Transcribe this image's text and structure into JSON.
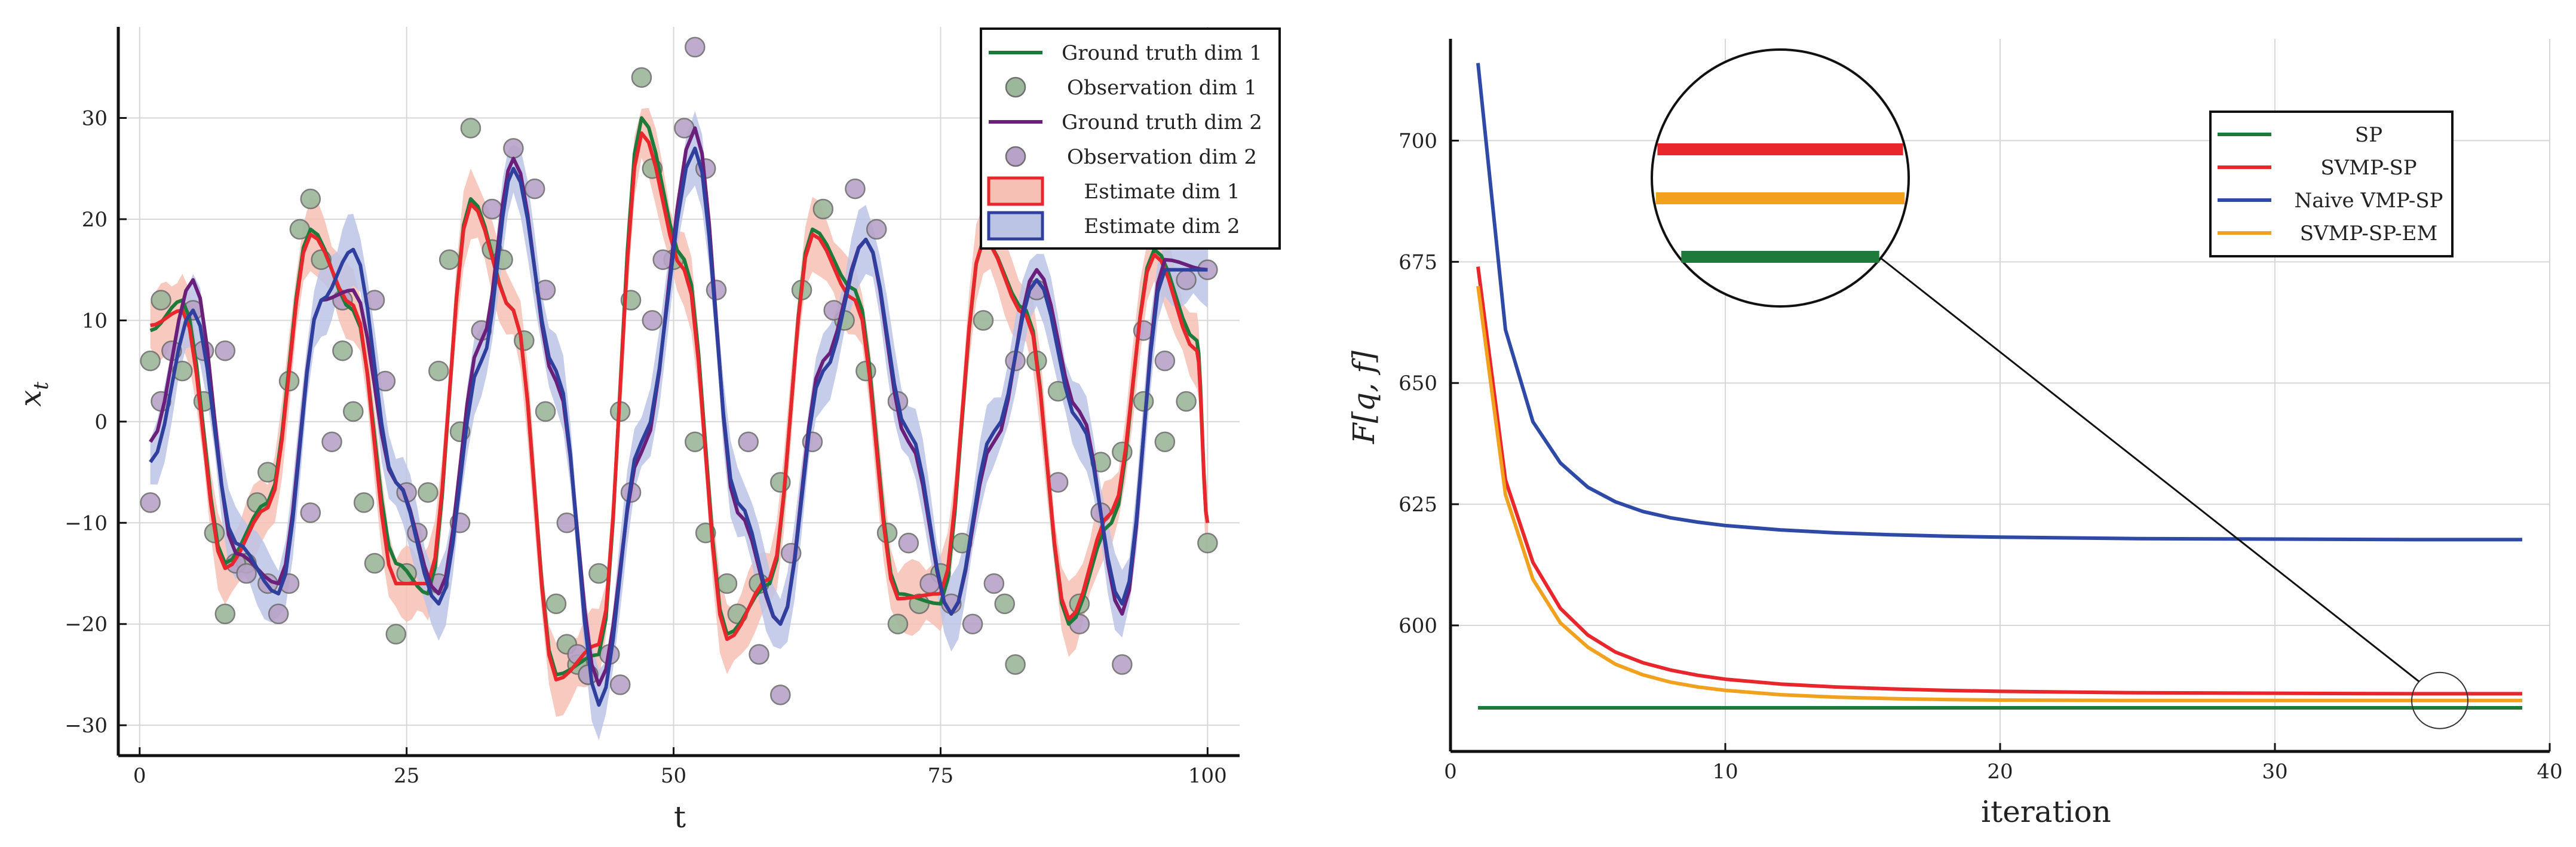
{
  "chart_data": [
    {
      "type": "line",
      "title": "",
      "xlabel": "t",
      "ylabel": "x_t",
      "xlim": [
        -2,
        103
      ],
      "ylim": [
        -33,
        39
      ],
      "xticks": [
        0,
        25,
        50,
        75,
        100
      ],
      "yticks": [
        -30,
        -20,
        -10,
        0,
        10,
        20,
        30
      ],
      "grid": true,
      "legend_position": "top-right",
      "legend": [
        {
          "label": "Ground truth dim 1",
          "kind": "line",
          "color": "#1e7a3a"
        },
        {
          "label": "Observation dim 1",
          "kind": "marker",
          "color": "#9cb89a"
        },
        {
          "label": "Ground truth dim 2",
          "kind": "line",
          "color": "#6a1f7a"
        },
        {
          "label": "Observation dim 2",
          "kind": "marker",
          "color": "#b8a2c8"
        },
        {
          "label": "Estimate dim 1",
          "kind": "band",
          "color": "#e8262b",
          "fill": "#f6c0b4"
        },
        {
          "label": "Estimate dim 2",
          "kind": "band",
          "color": "#2f3f9e",
          "fill": "#bcc4e6"
        }
      ],
      "series": [
        {
          "name": "Ground truth dim 1",
          "color": "#1e7a3a",
          "x": [
            1,
            4,
            8,
            12,
            16,
            20,
            24,
            27,
            31,
            35,
            39,
            43,
            47,
            51,
            55,
            59,
            63,
            67,
            71,
            75,
            79,
            83,
            87,
            91,
            95,
            99,
            100
          ],
          "y": [
            9,
            12,
            -14,
            -8,
            19,
            11,
            -14,
            -17,
            22,
            11,
            -25,
            -23,
            30,
            16,
            -21,
            -16,
            19,
            13,
            -17,
            -18,
            18,
            11,
            -20,
            -10,
            17,
            8,
            -10
          ]
        },
        {
          "name": "Estimate dim 1",
          "color": "#e8262b",
          "x": [
            1,
            4,
            8,
            12,
            16,
            20,
            24,
            27,
            31,
            35,
            39,
            43,
            47,
            51,
            55,
            59,
            63,
            67,
            71,
            75,
            79,
            83,
            87,
            91,
            95,
            99,
            100
          ],
          "y": [
            9.5,
            11,
            -14.5,
            -8.5,
            18.5,
            11.5,
            -16,
            -16,
            21.5,
            11,
            -25.5,
            -22,
            28.5,
            15,
            -21.5,
            -15.5,
            18.5,
            12,
            -17.5,
            -17,
            18,
            10.5,
            -19.5,
            -9,
            16.5,
            7,
            -10
          ]
        },
        {
          "name": "Ground truth dim 2",
          "color": "#6a1f7a",
          "x": [
            1,
            5,
            9,
            13,
            17,
            20,
            24,
            28,
            32,
            35,
            39,
            43,
            47,
            52,
            56,
            60,
            64,
            68,
            72,
            76,
            80,
            84,
            88,
            92,
            96,
            100
          ],
          "y": [
            -2,
            14,
            -13,
            -16,
            12,
            13,
            -6,
            -17,
            8,
            26,
            4,
            -26,
            -3,
            29,
            -9,
            -20,
            6,
            18,
            -2,
            -19,
            -2,
            15,
            1,
            -19,
            16,
            15
          ]
        },
        {
          "name": "Estimate dim 2",
          "color": "#2f3f9e",
          "x": [
            1,
            5,
            9,
            13,
            17,
            20,
            24,
            28,
            32,
            35,
            39,
            43,
            47,
            52,
            56,
            60,
            64,
            68,
            72,
            76,
            80,
            84,
            88,
            92,
            96,
            100
          ],
          "y": [
            -4,
            11,
            -12,
            -17,
            12,
            17,
            -6,
            -18,
            6,
            25,
            5,
            -28,
            -2,
            27,
            -8,
            -20,
            5,
            18,
            -1,
            -19,
            -1,
            14,
            0,
            -18,
            15,
            15
          ]
        }
      ],
      "observations": [
        {
          "name": "Observation dim 1",
          "color": "#9cb89a",
          "x": [
            1,
            2,
            4,
            6,
            7,
            8,
            10,
            11,
            12,
            14,
            15,
            16,
            17,
            19,
            20,
            21,
            22,
            24,
            25,
            27,
            28,
            29,
            30,
            31,
            33,
            34,
            36,
            38,
            39,
            40,
            41,
            42,
            43,
            45,
            46,
            47,
            48,
            50,
            52,
            53,
            55,
            56,
            58,
            60,
            62,
            64,
            66,
            68,
            70,
            71,
            73,
            75,
            77,
            79,
            81,
            82,
            84,
            86,
            88,
            90,
            92,
            94,
            96,
            98,
            100
          ],
          "y": [
            6,
            12,
            5,
            2,
            -11,
            -19,
            -14,
            -8,
            -5,
            4,
            19,
            22,
            16,
            7,
            1,
            -8,
            -14,
            -21,
            -15,
            -7,
            5,
            16,
            -1,
            29,
            17,
            16,
            8,
            1,
            -18,
            -22,
            -24,
            -25,
            -15,
            1,
            12,
            34,
            25,
            16,
            -2,
            -11,
            -16,
            -19,
            -16,
            -6,
            13,
            21,
            10,
            5,
            -11,
            -20,
            -18,
            -15,
            -12,
            10,
            -18,
            -24,
            6,
            3,
            -18,
            -4,
            -3,
            2,
            -2,
            2,
            -12
          ]
        },
        {
          "name": "Observation dim 2",
          "color": "#b8a2c8",
          "x": [
            1,
            2,
            3,
            5,
            6,
            8,
            9,
            10,
            12,
            13,
            14,
            16,
            18,
            19,
            22,
            23,
            25,
            26,
            28,
            30,
            32,
            33,
            35,
            37,
            38,
            40,
            41,
            42,
            44,
            45,
            46,
            48,
            49,
            51,
            52,
            53,
            54,
            57,
            58,
            60,
            61,
            63,
            65,
            67,
            69,
            71,
            72,
            74,
            76,
            78,
            80,
            82,
            84,
            86,
            88,
            90,
            92,
            94,
            96,
            98,
            100
          ],
          "y": [
            -8,
            2,
            7,
            11,
            7,
            7,
            -14,
            -15,
            -16,
            -19,
            -16,
            -9,
            -2,
            12,
            12,
            4,
            -7,
            -11,
            -16,
            -10,
            9,
            21,
            27,
            23,
            13,
            -10,
            -23,
            -25,
            -23,
            -26,
            -7,
            10,
            16,
            29,
            37,
            25,
            13,
            -2,
            -23,
            -27,
            -13,
            -2,
            11,
            23,
            19,
            2,
            -12,
            -16,
            -18,
            -20,
            -16,
            6,
            13,
            -6,
            -20,
            -9,
            -24,
            9,
            6,
            14,
            15
          ]
        }
      ]
    },
    {
      "type": "line",
      "title": "",
      "xlabel": "iteration",
      "ylabel": "F[q, f]",
      "xlim": [
        0,
        40
      ],
      "ylim": [
        574,
        721
      ],
      "xticks": [
        0,
        10,
        20,
        30,
        40
      ],
      "yticks": [
        600,
        625,
        650,
        675,
        700
      ],
      "grid": true,
      "legend_position": "top-right",
      "series": [
        {
          "name": "SP",
          "color": "#1e7a3a",
          "x": [
            1,
            39
          ],
          "y": [
            583,
            583
          ]
        },
        {
          "name": "SVMP-SP",
          "color": "#e8262b",
          "x": [
            1,
            2,
            3,
            4,
            5,
            6,
            7,
            8,
            9,
            10,
            12,
            14,
            16,
            18,
            20,
            25,
            30,
            35,
            39
          ],
          "y": [
            674,
            630,
            613,
            603.5,
            598,
            594.5,
            592.3,
            590.8,
            589.7,
            588.9,
            587.9,
            587.3,
            586.9,
            586.6,
            586.4,
            586.1,
            586.0,
            585.9,
            585.9
          ]
        },
        {
          "name": "Naive VMP-SP",
          "color": "#2f4aa6",
          "x": [
            1,
            2,
            3,
            4,
            5,
            6,
            7,
            8,
            9,
            10,
            12,
            14,
            16,
            18,
            20,
            25,
            30,
            35,
            39
          ],
          "y": [
            716,
            661,
            642,
            633.5,
            628.5,
            625.5,
            623.5,
            622.2,
            621.3,
            620.6,
            619.7,
            619.1,
            618.7,
            618.4,
            618.2,
            617.9,
            617.8,
            617.7,
            617.7
          ]
        },
        {
          "name": "SVMP-SP-EM",
          "color": "#f2a11f",
          "x": [
            1,
            2,
            3,
            4,
            5,
            6,
            7,
            8,
            9,
            10,
            12,
            14,
            16,
            18,
            20,
            25,
            30,
            35,
            39
          ],
          "y": [
            670,
            627,
            609.5,
            600.5,
            595.5,
            592,
            589.8,
            588.3,
            587.3,
            586.6,
            585.7,
            585.2,
            584.9,
            584.7,
            584.6,
            584.5,
            584.5,
            584.5,
            584.5
          ]
        }
      ],
      "zoom": {
        "target_x": 36,
        "target_y": 584.5,
        "order": [
          "SVMP-SP",
          "SVMP-SP-EM",
          "SP"
        ]
      }
    }
  ]
}
